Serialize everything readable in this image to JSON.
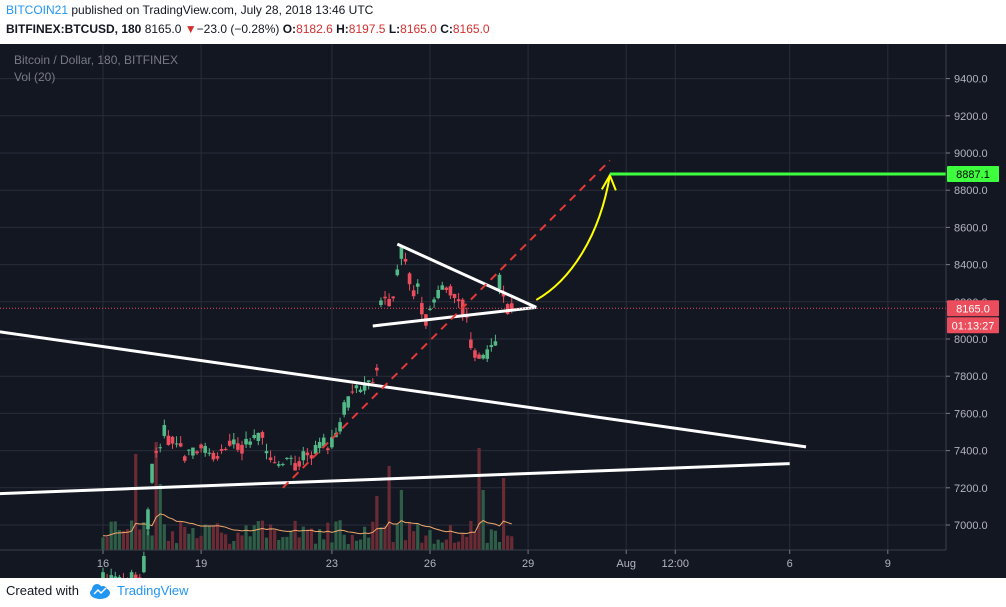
{
  "header": {
    "author": "BITCOIN21",
    "published_text": " published on TradingView.com, July 28, 2018 13:46 UTC",
    "symbol": "BITFINEX:BTCUSD, 180",
    "last_price": "8165.0",
    "change_arrow": "▼",
    "change": "−23.0 (−0.28%)",
    "open_label": "O:",
    "open": "8182.6",
    "high_label": "H:",
    "high": "8197.5",
    "low_label": "L:",
    "low": "8165.0",
    "close_label": "C:",
    "close": "8165.0"
  },
  "legend": {
    "title": "Bitcoin / Dollar, 180, BITFINEX",
    "volume": "Vol (20)"
  },
  "price_tags": {
    "target": "8887.1",
    "current": "8165.0",
    "countdown": "01:13:27"
  },
  "footer": {
    "created_with": "Created with",
    "brand": "TradingView"
  },
  "colors": {
    "background": "#131722",
    "grid": "#2a2e39",
    "up_candle": "#53b987",
    "down_candle": "#eb4d5c",
    "volume_up": "#2e5e47",
    "volume_down": "#6a2b35",
    "volume_ma": "#f0a86b",
    "trendline": "#ffffff",
    "dashed_projection": "#e53935",
    "forecast_arrow": "#ffff00",
    "target_line": "#3dff3d",
    "current_price_tag": "#eb4d5c",
    "author_link": "#2196f3"
  },
  "chart_data": {
    "type": "candlestick",
    "timeframe_minutes": 180,
    "y_axis": {
      "min": 6950,
      "max": 9500,
      "ticks": [
        7000.0,
        7200.0,
        7400.0,
        7600.0,
        7800.0,
        8000.0,
        8200.0,
        8400.0,
        8600.0,
        8800.0,
        9000.0,
        9200.0,
        9400.0
      ],
      "tick_labels": [
        "7000.0",
        "7200.0",
        "7400.0",
        "7600.0",
        "7800.0",
        "8000.0",
        "8200.0",
        "8400.0",
        "8600.0",
        "8800.0",
        "9000.0",
        "9200.0",
        "9400.0"
      ]
    },
    "x_axis": {
      "tick_labels": [
        "16",
        "19",
        "23",
        "26",
        "29",
        "Aug",
        "12:00",
        "6",
        "9"
      ],
      "tick_dates": [
        "2018-07-16",
        "2018-07-19",
        "2018-07-23",
        "2018-07-26",
        "2018-07-29",
        "2018-08-01",
        "2018-08-02 12:00",
        "2018-08-06",
        "2018-08-09"
      ]
    },
    "price_segments": [
      {
        "from": "2018-07-16",
        "to": "2018-07-17 06:00",
        "points": [
          [
            6720,
            6700
          ],
          [
            6690,
            6720
          ]
        ]
      },
      {
        "from": "2018-07-17 06:00",
        "to": "2018-07-18",
        "points": [
          [
            6740,
            7350
          ],
          [
            7360,
            7480
          ]
        ]
      },
      {
        "from": "2018-07-18",
        "to": "2018-07-20",
        "points": [
          [
            7480,
            7420
          ],
          [
            7380,
            7400
          ],
          [
            7420,
            7380
          ],
          [
            7370,
            7440
          ]
        ]
      },
      {
        "from": "2018-07-20",
        "to": "2018-07-21 12:00",
        "points": [
          [
            7440,
            7420
          ],
          [
            7420,
            7500
          ],
          [
            7390,
            7330
          ]
        ]
      },
      {
        "from": "2018-07-21 12:00",
        "to": "2018-07-23",
        "points": [
          [
            7330,
            7360
          ],
          [
            7380,
            7420
          ]
        ]
      },
      {
        "from": "2018-07-23",
        "to": "2018-07-24 06:00",
        "points": [
          [
            7420,
            7650
          ],
          [
            7700,
            7750
          ]
        ]
      },
      {
        "from": "2018-07-24 06:00",
        "to": "2018-07-24 21:00",
        "points": [
          [
            7750,
            7950
          ],
          [
            8200,
            8220
          ]
        ]
      },
      {
        "from": "2018-07-24 21:00",
        "to": "2018-07-25 06:00",
        "points": [
          [
            8220,
            8450
          ]
        ]
      },
      {
        "from": "2018-07-25 06:00",
        "to": "2018-07-26",
        "points": [
          [
            8450,
            8200
          ],
          [
            8300,
            8150
          ]
        ]
      },
      {
        "from": "2018-07-26",
        "to": "2018-07-27",
        "points": [
          [
            8150,
            8270
          ],
          [
            8300,
            8230
          ]
        ]
      },
      {
        "from": "2018-07-27",
        "to": "2018-07-27 18:00",
        "points": [
          [
            8230,
            7950
          ],
          [
            7960,
            7900
          ]
        ]
      },
      {
        "from": "2018-07-27 18:00",
        "to": "2018-07-28",
        "points": [
          [
            7900,
            7970
          ]
        ]
      },
      {
        "from": "2018-07-28",
        "to": "2018-07-28 06:00",
        "points": [
          [
            7970,
            8250
          ]
        ]
      },
      {
        "from": "2018-07-28 06:00",
        "to": "2018-07-28 12:00",
        "points": [
          [
            8250,
            8190
          ]
        ]
      },
      {
        "from": "2018-07-28 12:00",
        "to": "2018-07-28 15:00",
        "points": [
          [
            8188.0,
            8165.0
          ]
        ]
      }
    ],
    "volume_spikes": [
      {
        "date": "2018-07-15 09:00",
        "value": 1.0
      },
      {
        "date": "2018-07-17",
        "value": 0.8
      },
      {
        "date": "2018-07-17 15:00",
        "value": 0.9
      },
      {
        "date": "2018-07-17 18:00",
        "value": 0.55
      },
      {
        "date": "2018-07-24 09:00",
        "value": 0.45
      },
      {
        "date": "2018-07-24 18:00",
        "value": 0.7
      },
      {
        "date": "2018-07-25 03:00",
        "value": 0.5
      },
      {
        "date": "2018-07-27 12:00",
        "value": 0.85
      },
      {
        "date": "2018-07-27 15:00",
        "value": 0.5
      },
      {
        "date": "2018-07-28 06:00",
        "value": 0.6
      }
    ],
    "drawings": {
      "upper_wedge_line": {
        "from": [
          "2018-07-10",
          8110
        ],
        "to": [
          "2018-08-06 12:00",
          7420
        ]
      },
      "lower_wedge_line": {
        "from": [
          "2018-07-10",
          7150
        ],
        "to": [
          "2018-08-06",
          7330
        ]
      },
      "triangle_upper": {
        "from": [
          "2018-07-25",
          8510
        ],
        "to": [
          "2018-07-29 06:00",
          8170
        ]
      },
      "triangle_lower": {
        "from": [
          "2018-07-24 06:00",
          8070
        ],
        "to": [
          "2018-07-29 06:00",
          8170
        ]
      },
      "dashed_projection": {
        "from": [
          "2018-07-21 12:00",
          7200
        ],
        "to": [
          "2018-07-31 12:00",
          8960
        ]
      },
      "forecast_arrow": {
        "from": [
          "2018-07-29 06:00",
          8210
        ],
        "to": [
          "2018-07-31 12:00",
          8880
        ]
      },
      "target_level": 8887.1,
      "target_from": "2018-07-31 12:00",
      "current_price": 8165.0
    }
  }
}
